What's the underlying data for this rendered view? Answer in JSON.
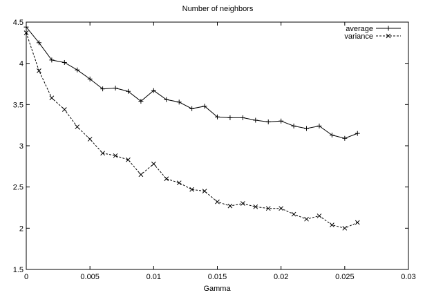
{
  "chart_data": {
    "type": "line",
    "title": "Number of neighbors",
    "xlabel": "Gamma",
    "ylabel": "",
    "xlim": [
      0,
      0.03
    ],
    "ylim": [
      1.5,
      4.5
    ],
    "xticks": [
      0,
      0.005,
      0.01,
      0.015,
      0.02,
      0.025,
      0.03
    ],
    "xtick_labels": [
      "0",
      "0.005",
      "0.01",
      "0.015",
      "0.02",
      "0.025",
      "0.03"
    ],
    "yticks": [
      1.5,
      2,
      2.5,
      3,
      3.5,
      4,
      4.5
    ],
    "ytick_labels": [
      "1.5",
      "2",
      "2.5",
      "3",
      "3.5",
      "4",
      "4.5"
    ],
    "grid": false,
    "legend_position": "top-right",
    "x": [
      0,
      0.001,
      0.002,
      0.003,
      0.004,
      0.005,
      0.006,
      0.007,
      0.008,
      0.009,
      0.01,
      0.011,
      0.012,
      0.013,
      0.014,
      0.015,
      0.016,
      0.017,
      0.018,
      0.019,
      0.02,
      0.021,
      0.022,
      0.023,
      0.024,
      0.025,
      0.026
    ],
    "series": [
      {
        "name": "average",
        "line_style": "solid",
        "marker": "plus",
        "values": [
          4.44,
          4.25,
          4.04,
          4.01,
          3.92,
          3.81,
          3.69,
          3.7,
          3.66,
          3.54,
          3.67,
          3.56,
          3.53,
          3.45,
          3.48,
          3.35,
          3.34,
          3.34,
          3.31,
          3.29,
          3.3,
          3.24,
          3.21,
          3.24,
          3.13,
          3.09,
          3.15
        ]
      },
      {
        "name": "variance",
        "line_style": "dashed",
        "marker": "cross",
        "values": [
          4.37,
          3.91,
          3.58,
          3.44,
          3.23,
          3.08,
          2.91,
          2.88,
          2.83,
          2.65,
          2.78,
          2.6,
          2.55,
          2.47,
          2.45,
          2.32,
          2.27,
          2.3,
          2.26,
          2.24,
          2.24,
          2.17,
          2.11,
          2.15,
          2.04,
          2.0,
          2.07
        ]
      }
    ]
  }
}
